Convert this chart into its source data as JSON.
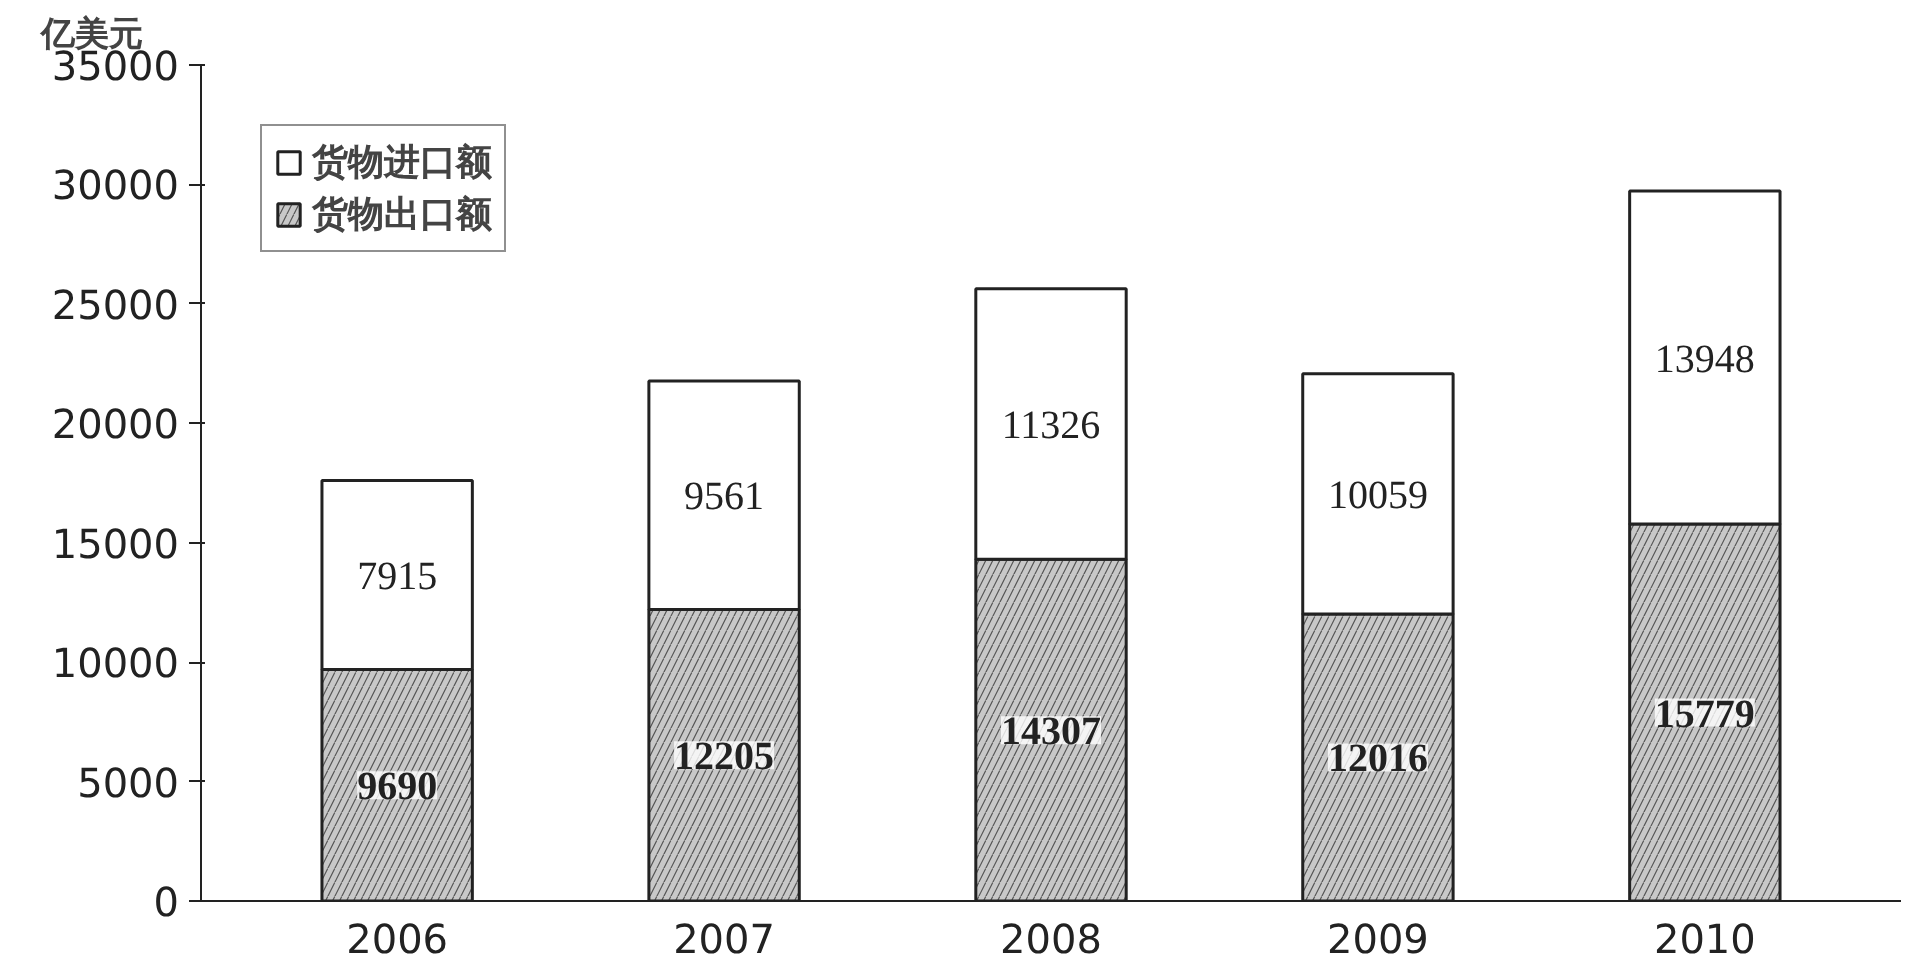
{
  "chart_data": {
    "type": "bar",
    "stacked": true,
    "ylabel": "亿美元",
    "categories": [
      "2006",
      "2007",
      "2008",
      "2009",
      "2010"
    ],
    "series": [
      {
        "name": "货物出口额",
        "color": "#c8c8c8",
        "values": [
          9690,
          12205,
          14307,
          12016,
          15779
        ]
      },
      {
        "name": "货物进口额",
        "color": "#ffffff",
        "values": [
          7915,
          9561,
          11326,
          10059,
          13948
        ]
      }
    ],
    "ylim": [
      0,
      35000
    ],
    "yticks": [
      0,
      5000,
      10000,
      15000,
      20000,
      25000,
      30000,
      35000
    ],
    "data_labels": true,
    "legend": "top left",
    "grid": false
  }
}
